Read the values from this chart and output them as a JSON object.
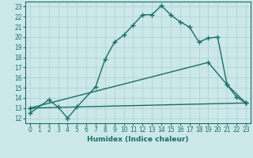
{
  "title": "",
  "xlabel": "Humidex (Indice chaleur)",
  "xlim": [
    -0.5,
    23.5
  ],
  "ylim": [
    11.5,
    23.5
  ],
  "xticks": [
    0,
    1,
    2,
    3,
    4,
    5,
    6,
    7,
    8,
    9,
    10,
    11,
    12,
    13,
    14,
    15,
    16,
    17,
    18,
    19,
    20,
    21,
    22,
    23
  ],
  "yticks": [
    12,
    13,
    14,
    15,
    16,
    17,
    18,
    19,
    20,
    21,
    22,
    23
  ],
  "bg_color": "#cce8e8",
  "grid_color": "#aad0d0",
  "line_color": "#1a6e6a",
  "line1_x": [
    0,
    2,
    3,
    4,
    5,
    7,
    8,
    9,
    10,
    11,
    12,
    13,
    14,
    15,
    16,
    17,
    18,
    19,
    20,
    21,
    22,
    23
  ],
  "line1_y": [
    12.5,
    13.8,
    13.1,
    12.0,
    13.1,
    15.1,
    17.8,
    19.5,
    20.2,
    21.2,
    22.2,
    22.2,
    23.1,
    22.2,
    21.5,
    21.0,
    19.5,
    19.9,
    20.0,
    15.3,
    14.1,
    13.5
  ],
  "line2_x": [
    0,
    23
  ],
  "line2_y": [
    13.0,
    13.5
  ],
  "line3_x": [
    0,
    19,
    21,
    23
  ],
  "line3_y": [
    13.0,
    17.5,
    15.3,
    13.5
  ],
  "marker": "+",
  "markersize": 5,
  "linewidth": 1.0,
  "tick_fontsize": 5.5,
  "label_fontsize": 6.5
}
